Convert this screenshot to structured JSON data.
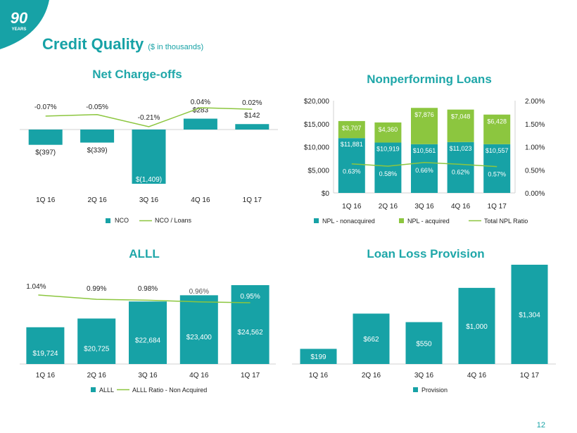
{
  "header": {
    "title": "Credit Quality",
    "subtitle": "($ in thousands)",
    "logo_number": "90",
    "logo_word": "YEARS"
  },
  "page_number": "12",
  "colors": {
    "teal": "#17a2a6",
    "green": "#8cc63f",
    "line": "#8cc63f",
    "text": "#222222",
    "dark_teal": "#0f6e73"
  },
  "chart_data": [
    {
      "id": "nco",
      "type": "bar",
      "title": "Net Charge-offs",
      "categories": [
        "1Q 16",
        "2Q 16",
        "3Q 16",
        "4Q 16",
        "1Q 17"
      ],
      "series": [
        {
          "name": "NCO",
          "values": [
            -397,
            -339,
            -1409,
            283,
            142
          ],
          "labels": [
            "$(397)",
            "$(339)",
            "$(1,409)",
            "$283",
            "$142"
          ]
        },
        {
          "name": "NCO / Loans",
          "values": [
            -0.07,
            -0.05,
            -0.21,
            0.04,
            0.02
          ],
          "labels": [
            "-0.07%",
            "-0.05%",
            "-0.21%",
            "0.04%",
            "0.02%"
          ]
        }
      ],
      "legend": [
        "NCO",
        "NCO / Loans"
      ]
    },
    {
      "id": "npl",
      "type": "bar",
      "stacked": true,
      "title": "Nonperforming Loans",
      "categories": [
        "1Q 16",
        "2Q 16",
        "3Q 16",
        "4Q 16",
        "1Q 17"
      ],
      "series": [
        {
          "name": "NPL - nonacquired",
          "values": [
            11881,
            10919,
            10561,
            11023,
            10557
          ],
          "labels": [
            "$11,881",
            "$10,919",
            "$10,561",
            "$11,023",
            "$10,557"
          ]
        },
        {
          "name": "NPL - acquired",
          "values": [
            3707,
            4360,
            7876,
            7048,
            6428
          ],
          "labels": [
            "$3,707",
            "$4,360",
            "$7,876",
            "$7,048",
            "$6,428"
          ]
        },
        {
          "name": "Total NPL Ratio",
          "values": [
            0.63,
            0.58,
            0.66,
            0.62,
            0.57
          ],
          "labels": [
            "0.63%",
            "0.58%",
            "0.66%",
            "0.62%",
            "0.57%"
          ]
        }
      ],
      "y_ticks": [
        "$0",
        "$5,000",
        "$10,000",
        "$15,000",
        "$20,000"
      ],
      "y2_ticks": [
        "0.00%",
        "0.50%",
        "1.00%",
        "1.50%",
        "2.00%"
      ],
      "ylim": [
        0,
        20000
      ],
      "y2lim": [
        0,
        2.0
      ],
      "legend": [
        "NPL - nonacquired",
        "NPL - acquired",
        "Total NPL Ratio"
      ]
    },
    {
      "id": "alll",
      "type": "bar",
      "title": "ALLL",
      "categories": [
        "1Q 16",
        "2Q 16",
        "3Q 16",
        "4Q 16",
        "1Q 17"
      ],
      "series": [
        {
          "name": "ALLL",
          "values": [
            19724,
            20725,
            22684,
            23400,
            24562
          ],
          "labels": [
            "$19,724",
            "$20,725",
            "$22,684",
            "$23,400",
            "$24,562"
          ]
        },
        {
          "name": "ALLL Ratio - Non Acquired",
          "values": [
            1.04,
            0.99,
            0.98,
            0.96,
            0.95
          ],
          "labels": [
            "1.04%",
            "0.99%",
            "0.98%",
            "0.96%",
            "0.95%"
          ]
        }
      ],
      "legend": [
        "ALLL",
        "ALLL Ratio - Non Acquired"
      ]
    },
    {
      "id": "llp",
      "type": "bar",
      "title": "Loan Loss Provision",
      "categories": [
        "1Q 16",
        "2Q 16",
        "3Q 16",
        "4Q 16",
        "1Q 17"
      ],
      "series": [
        {
          "name": "Provision",
          "values": [
            199,
            662,
            550,
            1000,
            1304
          ],
          "labels": [
            "$199",
            "$662",
            "$550",
            "$1,000",
            "$1,304"
          ]
        }
      ],
      "legend": [
        "Provision"
      ]
    }
  ]
}
